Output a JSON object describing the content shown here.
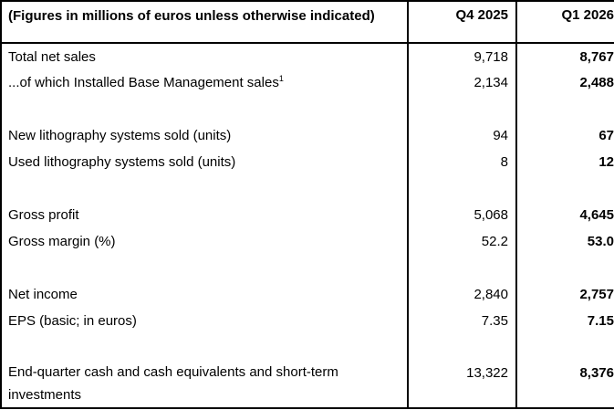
{
  "table": {
    "title_semantic": "quarterly-financial-results",
    "colors": {
      "text": "#000000",
      "border": "#000000",
      "background": "#ffffff"
    },
    "header": {
      "col1": "(Figures in millions of euros unless otherwise indicated)",
      "col2": "Q4 2025",
      "col3": "Q1 2026"
    },
    "rows": [
      {
        "type": "data",
        "label": "Total net sales",
        "q4_2025": "9,718",
        "q1_2026": "8,767"
      },
      {
        "type": "data",
        "label": "...of which Installed Base Management sales",
        "sup": "1",
        "q4_2025": "2,134",
        "q1_2026": "2,488"
      },
      {
        "type": "spacer"
      },
      {
        "type": "data",
        "label": "New lithography systems sold (units)",
        "q4_2025": "94",
        "q1_2026": "67"
      },
      {
        "type": "data",
        "label": "Used lithography systems sold (units)",
        "q4_2025": "8",
        "q1_2026": "12"
      },
      {
        "type": "spacer"
      },
      {
        "type": "data",
        "label": "Gross profit",
        "q4_2025": "5,068",
        "q1_2026": "4,645"
      },
      {
        "type": "data",
        "label": "Gross margin (%)",
        "q4_2025": "52.2",
        "q1_2026": "53.0"
      },
      {
        "type": "spacer"
      },
      {
        "type": "data",
        "label": "Net income",
        "q4_2025": "2,840",
        "q1_2026": "2,757"
      },
      {
        "type": "data",
        "label": "EPS (basic; in euros)",
        "q4_2025": "7.35",
        "q1_2026": "7.15"
      },
      {
        "type": "spacer"
      },
      {
        "type": "data",
        "label": "End-quarter cash and cash equivalents and short-term investments",
        "q4_2025": "13,322",
        "q1_2026": "8,376"
      }
    ]
  }
}
